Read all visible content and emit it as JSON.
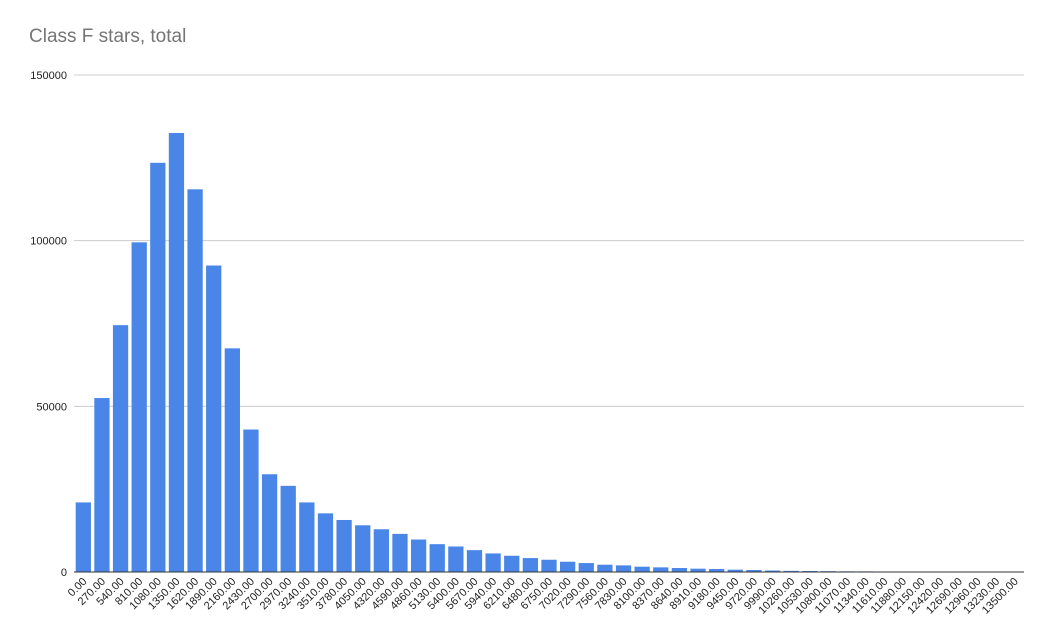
{
  "chart_data": {
    "type": "bar",
    "title": "Class F stars, total",
    "xlabel": "",
    "ylabel": "",
    "ylim": [
      0,
      150000
    ],
    "yticks": [
      "0",
      "50000",
      "100000",
      "150000"
    ],
    "grid": true,
    "bar_color": "#4a86e8",
    "categories": [
      "0.00",
      "270.00",
      "540.00",
      "810.00",
      "1080.00",
      "1350.00",
      "1620.00",
      "1890.00",
      "2160.00",
      "2430.00",
      "2700.00",
      "2970.00",
      "3240.00",
      "3510.00",
      "3780.00",
      "4050.00",
      "4320.00",
      "4590.00",
      "4860.00",
      "5130.00",
      "5400.00",
      "5670.00",
      "5940.00",
      "6210.00",
      "6480.00",
      "6750.00",
      "7020.00",
      "7290.00",
      "7560.00",
      "7830.00",
      "8100.00",
      "8370.00",
      "8640.00",
      "8910.00",
      "9180.00",
      "9450.00",
      "9720.00",
      "9990.00",
      "10260.00",
      "10530.00",
      "10800.00",
      "11070.00",
      "11340.00",
      "11610.00",
      "11880.00",
      "12150.00",
      "12420.00",
      "12690.00",
      "12960.00",
      "13230.00",
      "13500.00"
    ],
    "values": [
      21000,
      52500,
      74500,
      99500,
      123500,
      132500,
      115500,
      92500,
      67500,
      43000,
      29500,
      26000,
      21000,
      17700,
      15700,
      14100,
      12900,
      11500,
      9800,
      8400,
      7700,
      6600,
      5600,
      4900,
      4200,
      3700,
      3100,
      2700,
      2200,
      2000,
      1600,
      1400,
      1200,
      1000,
      900,
      700,
      600,
      450,
      350,
      300,
      250,
      200,
      180,
      150,
      130,
      120,
      100,
      90,
      80,
      70,
      60
    ]
  }
}
